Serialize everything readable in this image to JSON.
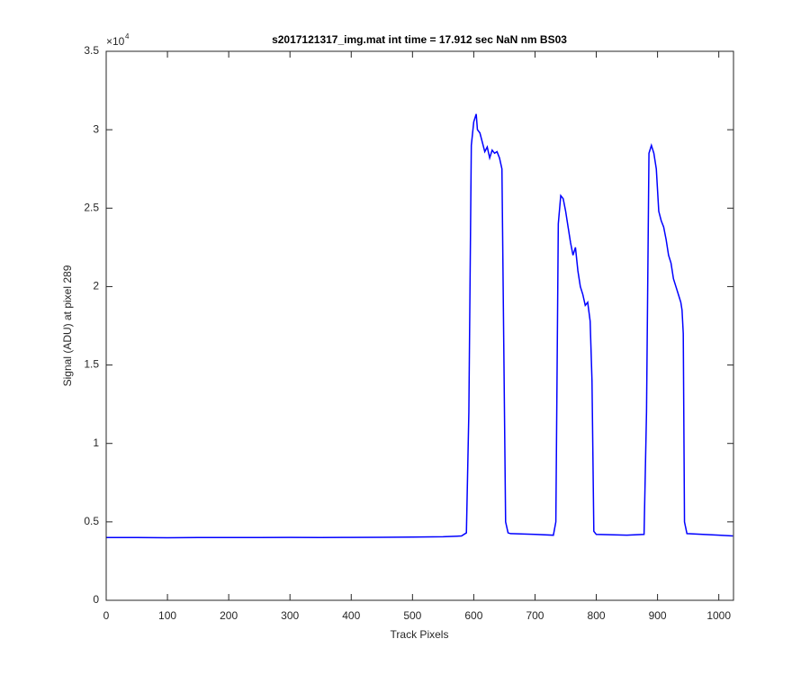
{
  "chart_data": {
    "type": "line",
    "title": "s2017121317_img.mat int time = 17.912 sec  NaN nm BS03",
    "x_label": "Track Pixels",
    "y_label": "Signal (ADU) at pixel 289",
    "y_multiplier": "×10",
    "y_exponent": "4",
    "color": "#0000ff",
    "xlim": [
      0,
      1024
    ],
    "xticks": [
      0,
      100,
      200,
      300,
      400,
      500,
      600,
      700,
      800,
      900,
      1000
    ],
    "ylim": [
      0,
      35000
    ],
    "yticks": [
      {
        "value": 0,
        "label": "0"
      },
      {
        "value": 5000,
        "label": "0.5"
      },
      {
        "value": 10000,
        "label": "1"
      },
      {
        "value": 15000,
        "label": "1.5"
      },
      {
        "value": 20000,
        "label": "2"
      },
      {
        "value": 25000,
        "label": "2.5"
      },
      {
        "value": 30000,
        "label": "3"
      },
      {
        "value": 35000,
        "label": "3.5"
      }
    ],
    "x": [
      0,
      50,
      100,
      150,
      200,
      250,
      300,
      350,
      400,
      450,
      500,
      550,
      580,
      588,
      592,
      596,
      600,
      604,
      606,
      610,
      614,
      618,
      622,
      626,
      630,
      634,
      638,
      642,
      646,
      648,
      652,
      656,
      660,
      700,
      730,
      734,
      738,
      742,
      746,
      750,
      754,
      758,
      762,
      766,
      770,
      774,
      778,
      782,
      786,
      790,
      793,
      796,
      800,
      850,
      878,
      882,
      886,
      890,
      894,
      898,
      902,
      906,
      910,
      914,
      918,
      922,
      926,
      930,
      934,
      938,
      940,
      942,
      944,
      948,
      1000,
      1023
    ],
    "values": [
      4000,
      4000,
      3990,
      4000,
      4000,
      4000,
      4010,
      4000,
      4010,
      4020,
      4030,
      4050,
      4100,
      4300,
      12000,
      29000,
      30500,
      31000,
      30000,
      29800,
      29200,
      28600,
      28900,
      28200,
      28700,
      28500,
      28600,
      28200,
      27500,
      20000,
      5000,
      4300,
      4250,
      4200,
      4150,
      5000,
      24000,
      25800,
      25600,
      24800,
      23800,
      22800,
      22000,
      22500,
      21000,
      20000,
      19500,
      18800,
      19000,
      17800,
      14000,
      4400,
      4200,
      4150,
      4200,
      12000,
      28500,
      29000,
      28500,
      27500,
      24800,
      24200,
      23800,
      23000,
      22000,
      21500,
      20500,
      20000,
      19500,
      19000,
      18500,
      17000,
      5000,
      4250,
      4150,
      4100
    ]
  }
}
